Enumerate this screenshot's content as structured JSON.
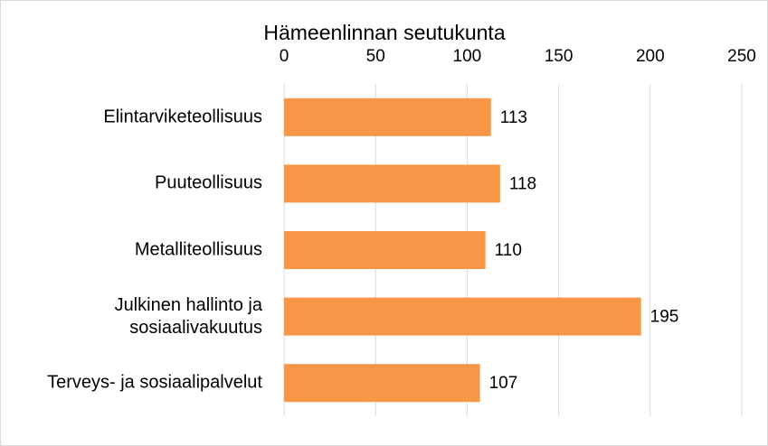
{
  "chart_data": {
    "type": "barh",
    "title": "Hämeenlinnan seutukunta",
    "categories": [
      "Elintarviketeollisuus",
      "Puuteollisuus",
      "Metalliteollisuus",
      "Julkinen hallinto ja\nsosiaalivakuutus",
      "Terveys- ja sosiaalipalvelut"
    ],
    "values": [
      113,
      118,
      110,
      195,
      107
    ],
    "color": "#f79646",
    "xlim": [
      0,
      250
    ],
    "xticks": [
      0,
      50,
      100,
      150,
      200,
      250
    ],
    "grid": true
  }
}
